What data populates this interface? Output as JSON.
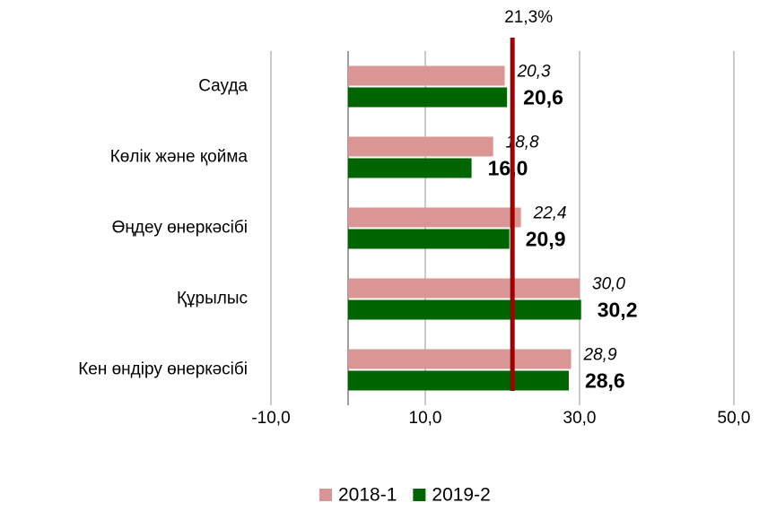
{
  "chart_data": {
    "type": "hbar",
    "categories": [
      "Сауда",
      "Көлік және қойма",
      "Өңдеу өнеркәсібі",
      "Құрылыс",
      "Кен өндіру өнеркәсібі"
    ],
    "series": [
      {
        "name": "2018-1",
        "color": "#d99694",
        "label_color": "#31859c",
        "values": [
          20.3,
          18.8,
          22.4,
          30.0,
          28.9
        ],
        "value_labels": [
          "20,3",
          "18,8",
          "22,4",
          "30,0",
          "28,9"
        ]
      },
      {
        "name": "2019-2",
        "color": "#006400",
        "label_color": "#4e7d2a",
        "values": [
          20.6,
          16.0,
          20.9,
          30.2,
          28.6
        ],
        "value_labels": [
          "20,6",
          "16,0",
          "20,9",
          "30,2",
          "28,6"
        ]
      }
    ],
    "xlim": [
      -10,
      50
    ],
    "xticks": [
      {
        "value": -10,
        "label": "-10,0"
      },
      {
        "value": 10,
        "label": "10,0"
      },
      {
        "value": 30,
        "label": "30,0"
      },
      {
        "value": 50,
        "label": "50,0"
      }
    ],
    "grid": true,
    "reference_line": {
      "value": 21.3,
      "label": "21,3%",
      "color": "#a00000",
      "label_color": "#e00000"
    },
    "legend": "bottom"
  }
}
